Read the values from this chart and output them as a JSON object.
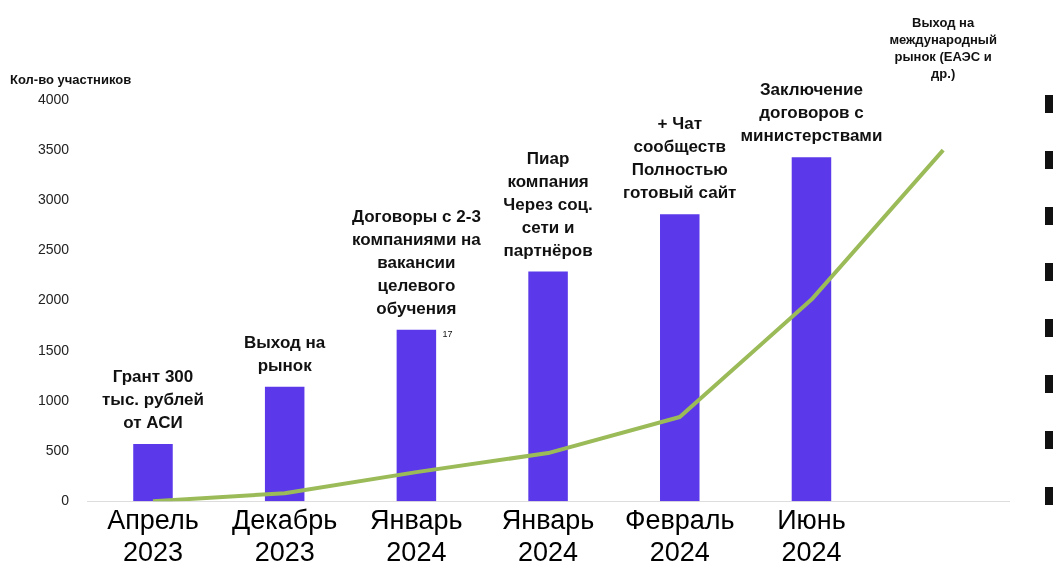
{
  "chart_data": {
    "type": "bar",
    "ylabel": "Кол-во участников",
    "categories": [
      "Апрель 2023",
      "Декабрь 2023",
      "Январь 2024",
      "Январь 2024",
      "Февраль 2024",
      "Июнь 2024",
      null
    ],
    "series": [
      {
        "color": "#5b38ea",
        "values": [
          570,
          1140,
          1710,
          2290,
          2860,
          3430,
          null
        ]
      },
      {
        "type": "line",
        "color": "#9bbb59",
        "values": [
          0,
          80,
          290,
          480,
          840,
          2010,
          3500
        ]
      }
    ],
    "ylim": [
      0,
      4000
    ],
    "yticks": [
      0,
      500,
      1000,
      1500,
      2000,
      2500,
      3000,
      3500,
      4000
    ],
    "grid": false,
    "legend": false,
    "marker": "none",
    "line_style": "solid",
    "annotations": [
      "Грант 300\nтыс. рублей\nот АСИ",
      "Выход на\nрынок",
      "Договоры с 2-3\nкомпаниями на\nвакансии\nцелевого\nобучения",
      "Пиар\nкомпания\nЧерез соц.\nсети и\nпартнёров",
      "+ Чат\nсообществ\nПолностью\nготовый сайт",
      "Заключение\nдоговоров с\nминистерствами",
      "Выход на\nмеждународный\nрынок (ЕАЭС и\nдр.)",
      {
        "text": "17",
        "x": "Январь 2024",
        "y": 1710
      }
    ]
  }
}
